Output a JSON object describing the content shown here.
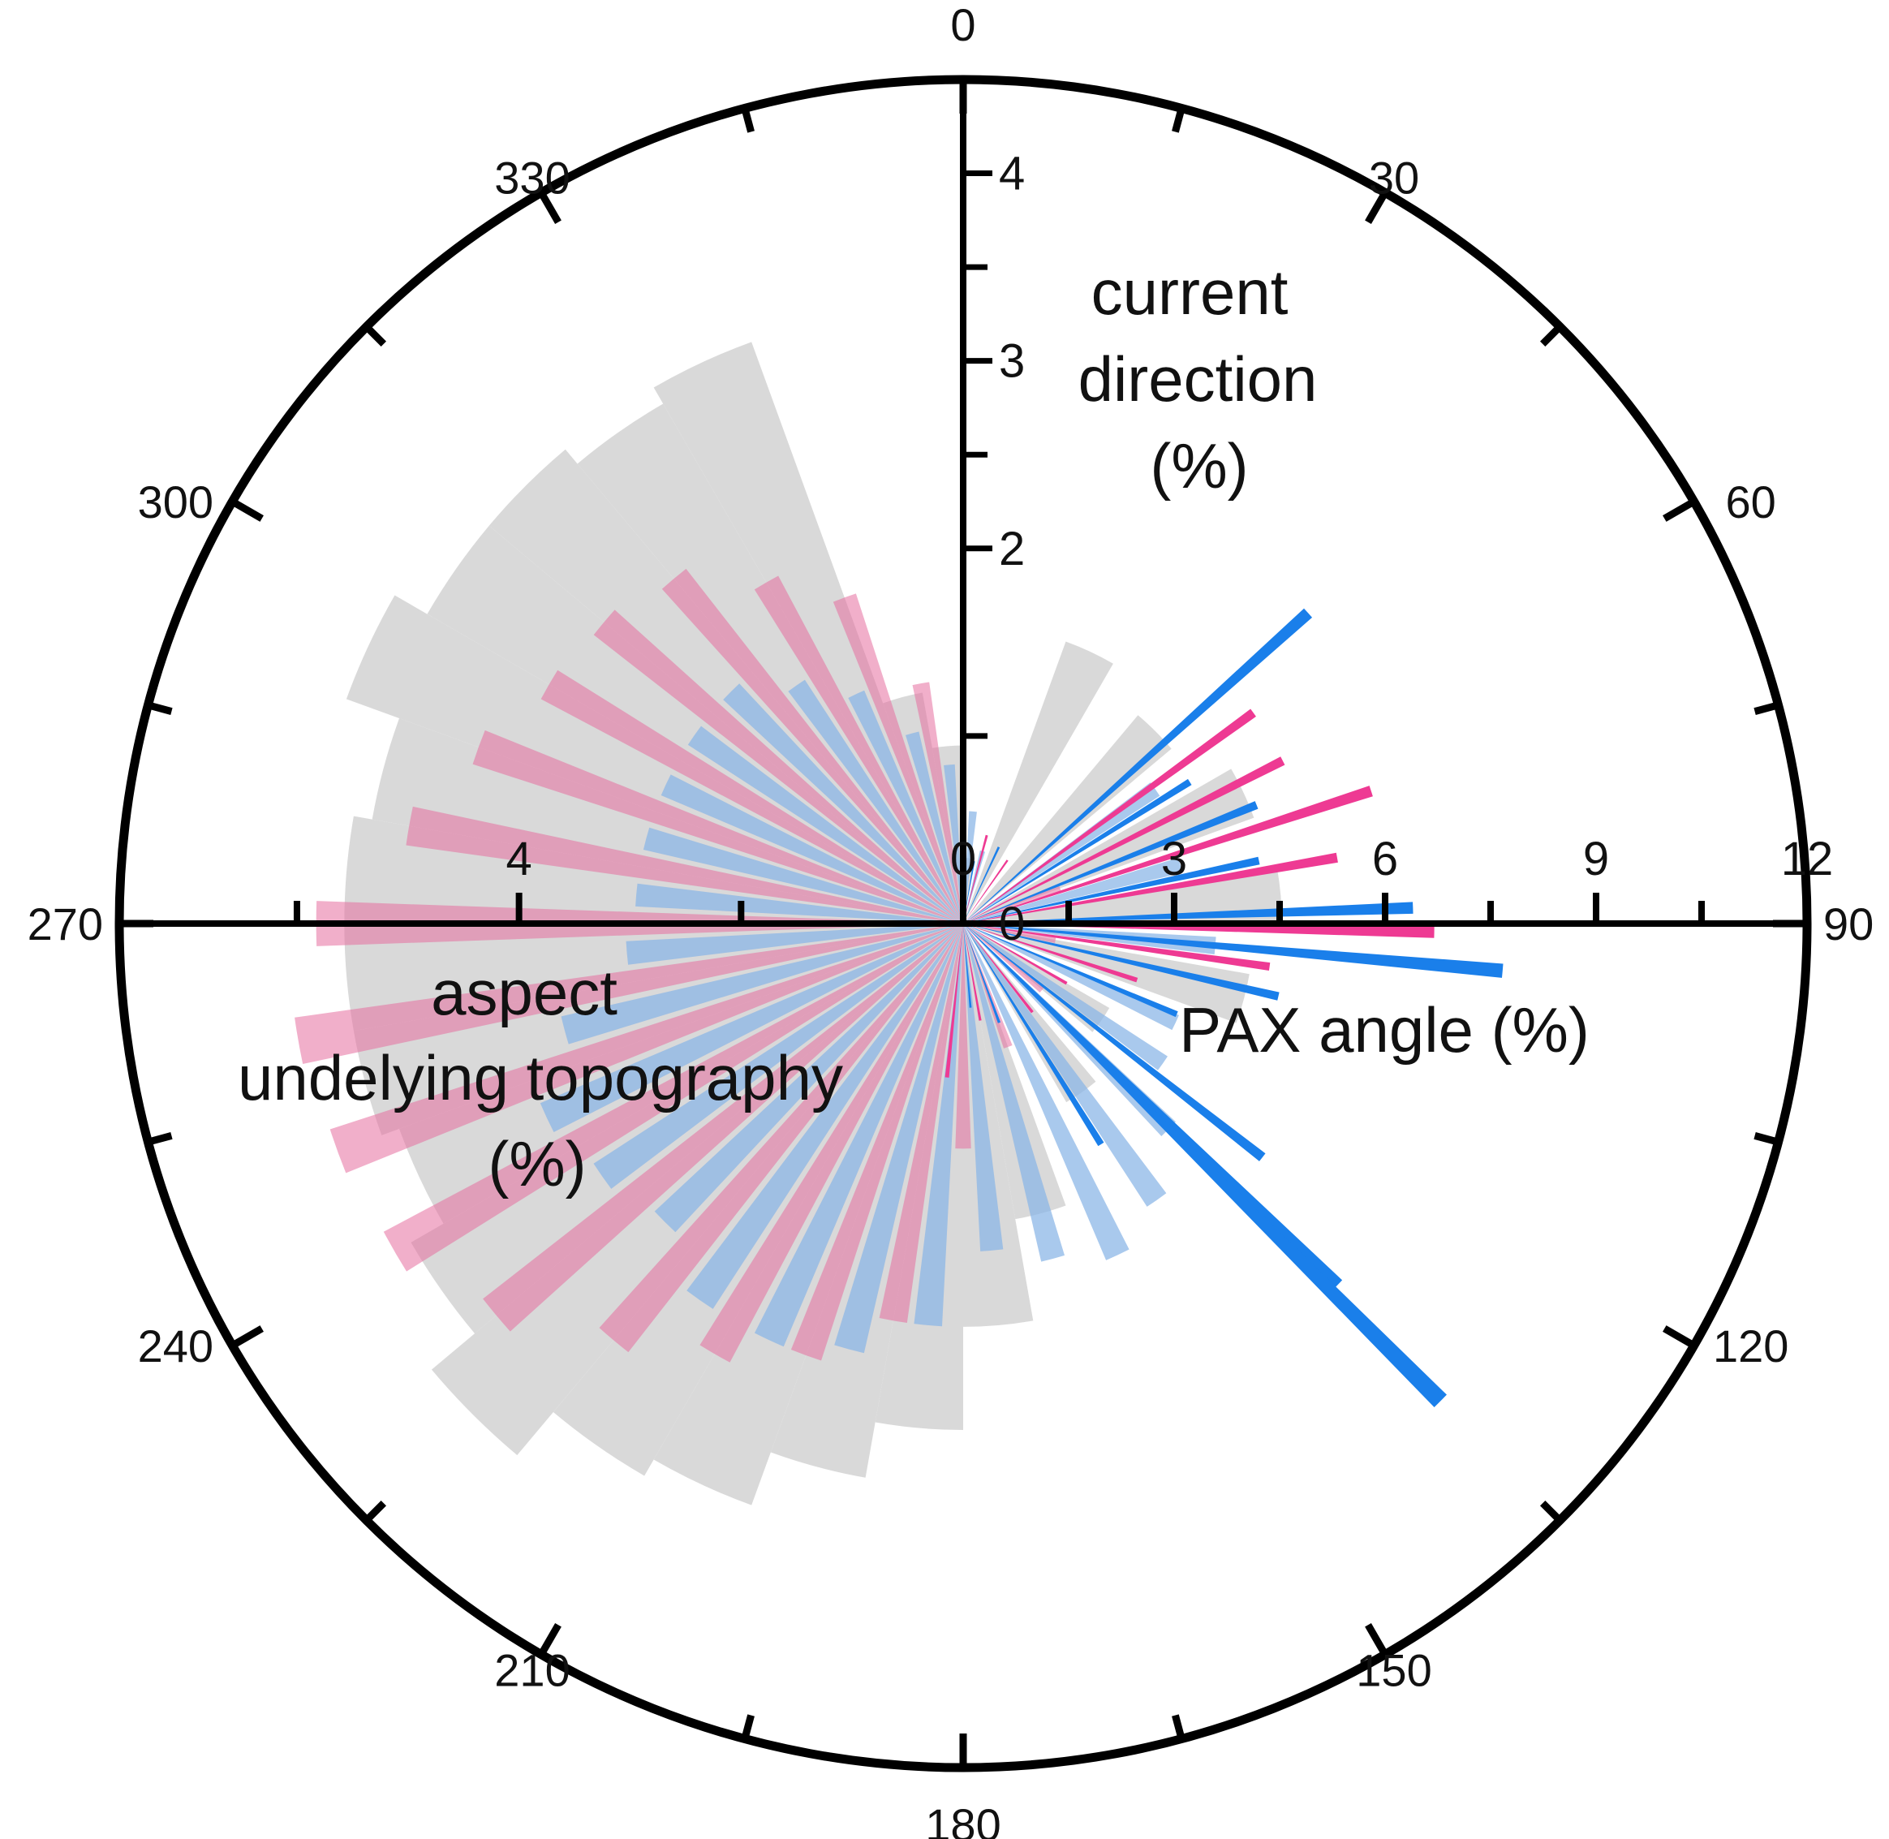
{
  "chart_data": {
    "type": "polar-bar",
    "angle_labels": [
      "0",
      "30",
      "60",
      "90",
      "120",
      "150",
      "180",
      "210",
      "240",
      "270",
      "300",
      "330"
    ],
    "radial_axes": {
      "current_direction": {
        "title": [
          "current",
          "direction",
          "(%)"
        ],
        "direction": "up",
        "range": [
          0,
          4.5
        ],
        "major_ticks": [
          "0",
          "2",
          "3",
          "4"
        ],
        "major_tick_values": [
          0,
          2,
          3,
          4
        ],
        "minor_tick_values": [
          1,
          2.5,
          3.5
        ]
      },
      "pax_angle": {
        "title": [
          "PAX angle (%)"
        ],
        "direction": "right",
        "range": [
          0,
          12
        ],
        "major_ticks": [
          "0",
          "3",
          "6",
          "9",
          "12"
        ],
        "major_tick_values": [
          0,
          3,
          6,
          9,
          12
        ],
        "minor_tick_values": [
          1.5,
          4.5,
          7.5,
          10.5
        ]
      },
      "aspect_topography": {
        "title": [
          "aspect",
          "undelying topography",
          "(%)"
        ],
        "direction": "left",
        "range": [
          0,
          7.6
        ],
        "major_ticks": [
          "4"
        ],
        "major_tick_values": [
          4
        ],
        "minor_tick_values": [
          2,
          6
        ]
      }
    },
    "series": [
      {
        "key": "gray",
        "color": "#d9d9d9",
        "width_deg": 10,
        "bars": [
          {
            "dir": 5,
            "value": 0.35
          },
          {
            "dir": 25,
            "value": 1.6
          },
          {
            "dir": 45,
            "value": 1.45
          },
          {
            "dir": 65,
            "value": 1.65
          },
          {
            "dir": 85,
            "value": 1.7
          },
          {
            "dir": 105,
            "value": 1.55
          },
          {
            "dir": 125,
            "value": 0.9
          },
          {
            "dir": 145,
            "value": 1.1
          },
          {
            "dir": 165,
            "value": 1.6
          },
          {
            "dir": 175,
            "value": 2.15
          },
          {
            "dir": 185,
            "value": 2.7
          },
          {
            "dir": 195,
            "value": 3.0
          },
          {
            "dir": 205,
            "value": 3.3
          },
          {
            "dir": 215,
            "value": 3.4
          },
          {
            "dir": 225,
            "value": 3.7
          },
          {
            "dir": 235,
            "value": 3.4
          },
          {
            "dir": 245,
            "value": 3.2
          },
          {
            "dir": 255,
            "value": 3.3
          },
          {
            "dir": 265,
            "value": 3.3
          },
          {
            "dir": 275,
            "value": 3.3
          },
          {
            "dir": 285,
            "value": 3.2
          },
          {
            "dir": 295,
            "value": 3.5
          },
          {
            "dir": 305,
            "value": 3.3
          },
          {
            "dir": 315,
            "value": 3.3
          },
          {
            "dir": 325,
            "value": 3.2
          },
          {
            "dir": 335,
            "value": 3.3
          },
          {
            "dir": 345,
            "value": 1.25
          },
          {
            "dir": 355,
            "value": 0.95
          }
        ]
      },
      {
        "key": "light-blue",
        "color": "#88b4e6",
        "opacity": 0.72,
        "width_deg": 4,
        "bars": [
          {
            "dir": 5,
            "value": 0.6
          },
          {
            "dir": 15,
            "value": 0.4
          },
          {
            "dir": 55,
            "value": 1.25
          },
          {
            "dir": 75,
            "value": 1.2
          },
          {
            "dir": 95,
            "value": 1.35
          },
          {
            "dir": 115,
            "value": 1.25
          },
          {
            "dir": 125,
            "value": 1.3
          },
          {
            "dir": 135,
            "value": 1.55
          },
          {
            "dir": 145,
            "value": 1.8
          },
          {
            "dir": 155,
            "value": 1.95
          },
          {
            "dir": 165,
            "value": 1.85
          },
          {
            "dir": 175,
            "value": 1.75
          },
          {
            "dir": 185,
            "value": 2.15
          },
          {
            "dir": 195,
            "value": 2.35
          },
          {
            "dir": 205,
            "value": 2.45
          },
          {
            "dir": 215,
            "value": 2.45
          },
          {
            "dir": 225,
            "value": 2.25
          },
          {
            "dir": 235,
            "value": 2.35
          },
          {
            "dir": 245,
            "value": 2.45
          },
          {
            "dir": 255,
            "value": 2.2
          },
          {
            "dir": 265,
            "value": 1.8
          },
          {
            "dir": 275,
            "value": 1.75
          },
          {
            "dir": 285,
            "value": 1.75
          },
          {
            "dir": 295,
            "value": 1.75
          },
          {
            "dir": 305,
            "value": 1.75
          },
          {
            "dir": 315,
            "value": 1.75
          },
          {
            "dir": 325,
            "value": 1.55
          },
          {
            "dir": 335,
            "value": 1.35
          },
          {
            "dir": 345,
            "value": 1.05
          },
          {
            "dir": 355,
            "value": 0.85
          }
        ]
      },
      {
        "key": "pink",
        "color": "#e66d9e",
        "opacity": 0.55,
        "width_deg": 4,
        "bars": [
          {
            "dir": 70,
            "value": 0.55
          },
          {
            "dir": 100,
            "value": 0.5
          },
          {
            "dir": 130,
            "value": 0.55
          },
          {
            "dir": 160,
            "value": 0.7
          },
          {
            "dir": 180,
            "value": 1.2
          },
          {
            "dir": 190,
            "value": 2.15
          },
          {
            "dir": 200,
            "value": 2.45
          },
          {
            "dir": 210,
            "value": 2.65
          },
          {
            "dir": 220,
            "value": 2.9
          },
          {
            "dir": 230,
            "value": 3.25
          },
          {
            "dir": 240,
            "value": 3.5
          },
          {
            "dir": 250,
            "value": 3.55
          },
          {
            "dir": 260,
            "value": 3.6
          },
          {
            "dir": 270,
            "value": 3.45
          },
          {
            "dir": 280,
            "value": 3.0
          },
          {
            "dir": 290,
            "value": 2.75
          },
          {
            "dir": 300,
            "value": 2.55
          },
          {
            "dir": 310,
            "value": 2.5
          },
          {
            "dir": 320,
            "value": 2.4
          },
          {
            "dir": 330,
            "value": 2.1
          },
          {
            "dir": 340,
            "value": 1.85
          },
          {
            "dir": 350,
            "value": 1.3
          }
        ]
      },
      {
        "key": "blue",
        "color": "#1a7fea",
        "width_deg": 1.5,
        "bars": [
          {
            "dir": 48,
            "value": 6.6
          },
          {
            "dir": 58,
            "value": 3.8
          },
          {
            "dir": 68,
            "value": 4.5
          },
          {
            "dir": 78,
            "value": 4.3
          },
          {
            "dir": 88,
            "value": 6.4
          },
          {
            "dir": 95,
            "value": 7.7
          },
          {
            "dir": 103,
            "value": 4.6
          },
          {
            "dir": 113,
            "value": 3.3
          },
          {
            "dir": 128,
            "value": 5.4
          },
          {
            "dir": 134,
            "value": 7.4
          },
          {
            "dir": 135,
            "value": 9.6
          },
          {
            "dir": 148,
            "value": 3.7
          },
          {
            "dir": 160,
            "value": 1.5
          },
          {
            "dir": 175,
            "value": 1.2
          },
          {
            "dir": 10,
            "value": 0.9
          },
          {
            "dir": 25,
            "value": 1.2
          }
        ]
      },
      {
        "key": "magenta",
        "color": "#ee3a93",
        "width_deg": 1.5,
        "bars": [
          {
            "dir": 54,
            "value": 5.1
          },
          {
            "dir": 63,
            "value": 5.1
          },
          {
            "dir": 72,
            "value": 6.1
          },
          {
            "dir": 80,
            "value": 5.4
          },
          {
            "dir": 91,
            "value": 6.7
          },
          {
            "dir": 98,
            "value": 4.4
          },
          {
            "dir": 108,
            "value": 2.6
          },
          {
            "dir": 120,
            "value": 1.7
          },
          {
            "dir": 142,
            "value": 1.6
          },
          {
            "dir": 170,
            "value": 1.4
          },
          {
            "dir": 186,
            "value": 2.2
          },
          {
            "dir": 15,
            "value": 1.3
          },
          {
            "dir": 35,
            "value": 1.1
          }
        ]
      }
    ]
  }
}
